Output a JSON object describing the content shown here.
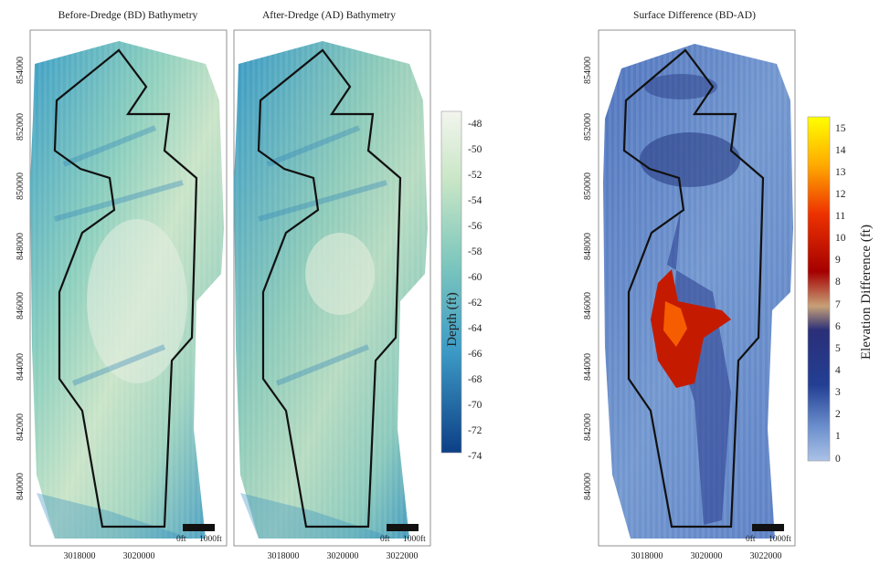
{
  "panels": [
    {
      "title": "Before-Dredge (BD) Bathymetry"
    },
    {
      "title": "After-Dredge (AD) Bathymetry"
    },
    {
      "title": "Surface Difference (BD-AD)"
    }
  ],
  "x_ticks": [
    "3018000",
    "3020000",
    "3022000"
  ],
  "y_ticks": [
    "854000",
    "852000",
    "850000",
    "848000",
    "846000",
    "844000",
    "842000",
    "840000"
  ],
  "depth_colorbar": {
    "title": "Depth (ft)",
    "labels": [
      "-48",
      "-50",
      "-52",
      "-54",
      "-56",
      "-58",
      "-60",
      "-62",
      "-64",
      "-66",
      "-68",
      "-70",
      "-72",
      "-74"
    ],
    "colors": [
      "#f2f5ee",
      "#bfe0c2",
      "#6cc0bf",
      "#2f8fc0",
      "#0d3f86"
    ]
  },
  "elevation_colorbar": {
    "title": "Elevation Difference (ft)",
    "labels": [
      "15",
      "14",
      "13",
      "12",
      "11",
      "10",
      "9",
      "8",
      "7",
      "6",
      "5",
      "4",
      "3",
      "2",
      "1",
      "0"
    ],
    "colors": [
      "#ffff00",
      "#ff9900",
      "#dd2200",
      "#a00000",
      "#c8a27a",
      "#2a2f78",
      "#1b3a8c",
      "#5d84c6",
      "#a7bde3"
    ]
  },
  "scale_bars": [
    {
      "start": "0ft",
      "end": "1000ft"
    },
    {
      "start": "0ft",
      "end": "1000ft"
    },
    {
      "start": "0ft",
      "end": "1000ft"
    }
  ]
}
